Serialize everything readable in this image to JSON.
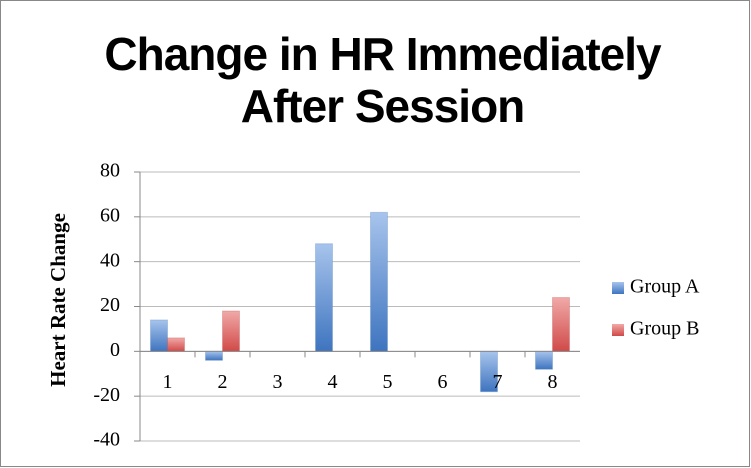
{
  "chart_data": {
    "type": "bar",
    "title": "Change in HR Immediately After Session",
    "y_label": "Heart Rate Change",
    "categories": [
      "1",
      "2",
      "3",
      "4",
      "5",
      "6",
      "7",
      "8"
    ],
    "series": [
      {
        "name": "Group A",
        "color": "#4f81bd",
        "values": [
          14,
          -4,
          0,
          48,
          62,
          0,
          -18,
          -8
        ]
      },
      {
        "name": "Group B",
        "color": "#c0504d",
        "values": [
          6,
          18,
          0,
          0,
          0,
          0,
          0,
          24
        ]
      }
    ],
    "ylim": [
      -40,
      80
    ],
    "yticks": [
      -40,
      -20,
      0,
      20,
      40,
      60,
      80
    ],
    "grid": true,
    "legend": "right"
  }
}
